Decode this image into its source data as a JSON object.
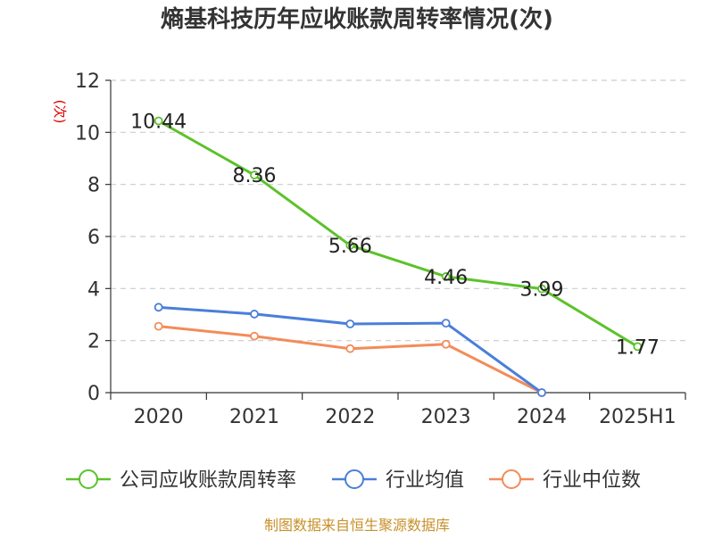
{
  "chart_data": {
    "type": "line",
    "title": "熵基科技历年应收账款周转率情况(次)",
    "ylabel": "(次)",
    "xlabel": "",
    "categories": [
      "2020",
      "2021",
      "2022",
      "2023",
      "2024",
      "2025H1"
    ],
    "ylim": [
      0,
      12
    ],
    "yticks": [
      0,
      2,
      4,
      6,
      8,
      10,
      12
    ],
    "grid": true,
    "legend_position": "bottom",
    "series": [
      {
        "name": "公司应收账款周转率",
        "color": "#5cc22a",
        "values": [
          10.44,
          8.36,
          5.66,
          4.46,
          3.99,
          1.77
        ],
        "labels": [
          "10.44",
          "8.36",
          "5.66",
          "4.46",
          "3.99",
          "1.77"
        ]
      },
      {
        "name": "行业均值",
        "color": "#4a7fd9",
        "values": [
          3.28,
          3.02,
          2.64,
          2.67,
          0.0,
          null
        ]
      },
      {
        "name": "行业中位数",
        "color": "#f28c5a",
        "values": [
          2.55,
          2.17,
          1.69,
          1.86,
          0.0,
          null
        ]
      }
    ]
  },
  "source_note": "制图数据来自恒生聚源数据库"
}
